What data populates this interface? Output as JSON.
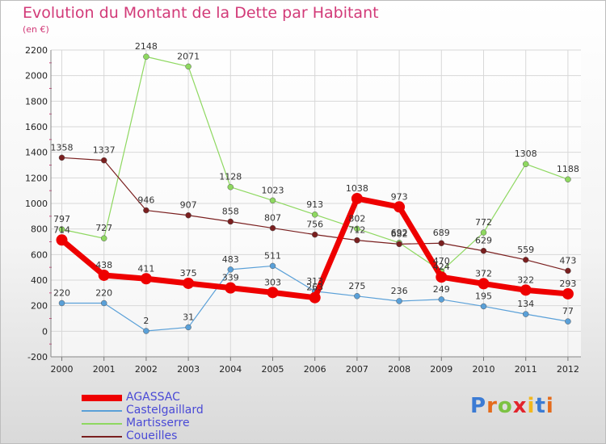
{
  "header": {
    "title": "Evolution du Montant de la Dette par Habitant",
    "subtitle": "(en €)"
  },
  "logo": {
    "text": "Proxiti",
    "letters": [
      {
        "ch": "P",
        "color": "#3b7bd4"
      },
      {
        "ch": "r",
        "color": "#e46b1c"
      },
      {
        "ch": "o",
        "color": "#7cc243"
      },
      {
        "ch": "x",
        "color": "#e2242c"
      },
      {
        "ch": "i",
        "color": "#f2b81e"
      },
      {
        "ch": "t",
        "color": "#3b7bd4"
      },
      {
        "ch": "i",
        "color": "#e46b1c"
      }
    ]
  },
  "chart_data": {
    "type": "line",
    "title": "Evolution du Montant de la Dette par Habitant",
    "subtitle": "(en €)",
    "x": [
      "2000",
      "2001",
      "2002",
      "2003",
      "2004",
      "2005",
      "2006",
      "2007",
      "2008",
      "2009",
      "2010",
      "2011",
      "2012"
    ],
    "ylim": [
      -200,
      2200
    ],
    "yticks": [
      "-200",
      "0",
      "200",
      "400",
      "600",
      "800",
      "1000",
      "1200",
      "1400",
      "1600",
      "1800",
      "2000",
      "2200"
    ],
    "grid": true,
    "legend_position": "bottom-left",
    "series": [
      {
        "name": "AGASSAC",
        "color": "#ee0000",
        "width": 7,
        "marker": 7,
        "values": [
          714,
          438,
          411,
          375,
          339,
          303,
          263,
          1038,
          973,
          424,
          372,
          322,
          293
        ],
        "labels": [
          "714",
          "438",
          "411",
          "375",
          "339",
          "303",
          "263",
          "1038",
          "973",
          "424",
          "372",
          "322",
          "293"
        ]
      },
      {
        "name": "Castelgaillard",
        "color": "#5aa0d8",
        "width": 1.2,
        "marker": 3.5,
        "values": [
          220,
          220,
          2,
          31,
          483,
          511,
          313,
          275,
          236,
          249,
          195,
          134,
          77
        ],
        "labels": [
          "220",
          "220",
          "2",
          "31",
          "483",
          "511",
          "313",
          "275",
          "236",
          "249",
          "195",
          "134",
          "77"
        ]
      },
      {
        "name": "Martisserre",
        "color": "#8ed860",
        "width": 1.2,
        "marker": 3.5,
        "values": [
          797,
          727,
          2148,
          2071,
          1128,
          1023,
          913,
          802,
          692,
          470,
          772,
          1308,
          1188
        ],
        "labels": [
          "797",
          "727",
          "2148",
          "2071",
          "1128",
          "1023",
          "913",
          "802",
          "692",
          "470",
          "772",
          "1308",
          "1188"
        ]
      },
      {
        "name": "Coueilles",
        "color": "#7a1f1f",
        "width": 1.2,
        "marker": 3.5,
        "values": [
          1358,
          1337,
          946,
          907,
          858,
          807,
          756,
          712,
          682,
          689,
          629,
          559,
          473
        ],
        "labels": [
          "1358",
          "1337",
          "946",
          "907",
          "858",
          "807",
          "756",
          "712",
          "682",
          "689",
          "629",
          "559",
          "473"
        ]
      }
    ]
  }
}
